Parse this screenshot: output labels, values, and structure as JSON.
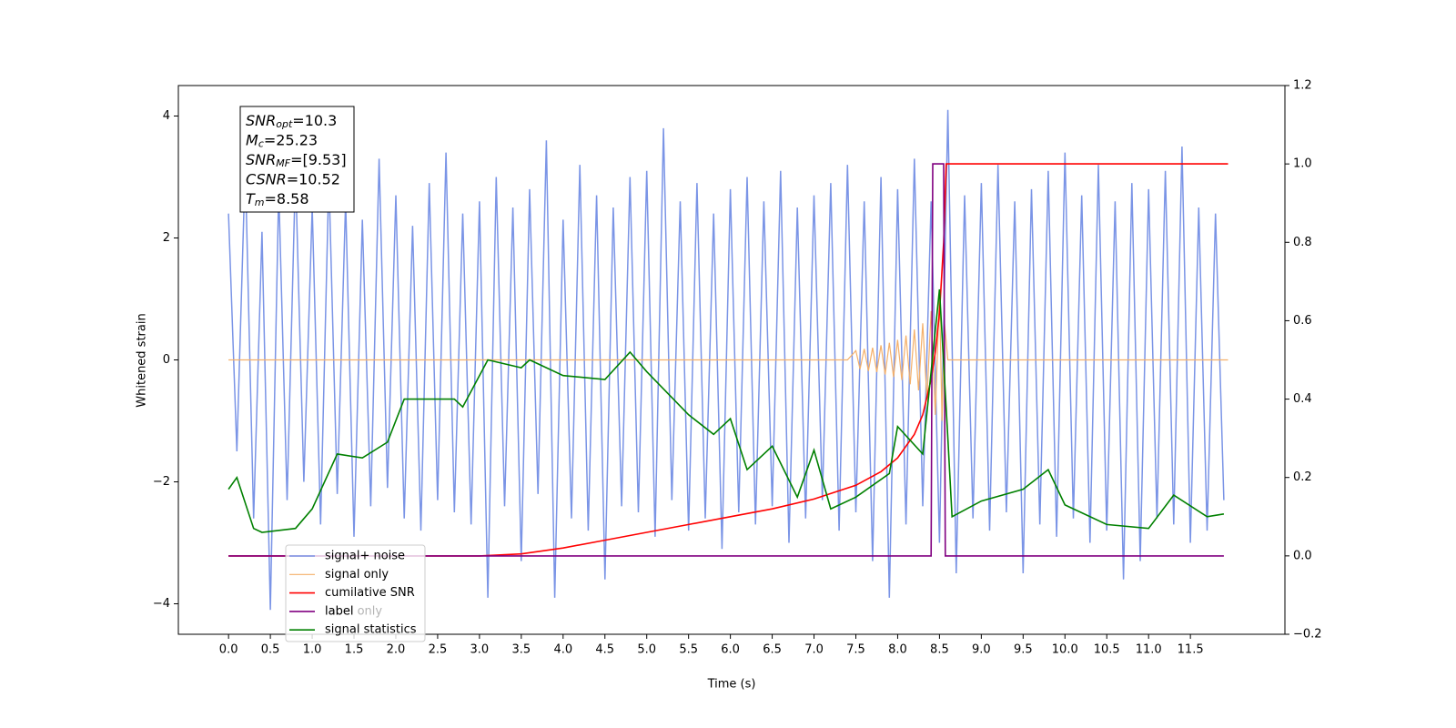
{
  "chart_data": {
    "type": "line",
    "xlabel": "Time (s)",
    "ylabel": "Whitened strain",
    "xlim": [
      -0.6,
      12.63
    ],
    "ylim": [
      -4.5,
      4.5
    ],
    "y2lim": [
      -0.2,
      1.2
    ],
    "xticks": [
      {
        "value": 0,
        "label": "0.0"
      },
      {
        "value": 0.5,
        "label": "0.5"
      },
      {
        "value": 1,
        "label": "1.0"
      },
      {
        "value": 1.5,
        "label": "1.5"
      },
      {
        "value": 2,
        "label": "2.0"
      },
      {
        "value": 2.5,
        "label": "2.5"
      },
      {
        "value": 3,
        "label": "3.0"
      },
      {
        "value": 3.5,
        "label": "3.5"
      },
      {
        "value": 4,
        "label": "4.0"
      },
      {
        "value": 4.5,
        "label": "4.5"
      },
      {
        "value": 5,
        "label": "5.0"
      },
      {
        "value": 5.5,
        "label": "5.5"
      },
      {
        "value": 6,
        "label": "6.0"
      },
      {
        "value": 6.5,
        "label": "6.5"
      },
      {
        "value": 7,
        "label": "7.0"
      },
      {
        "value": 7.5,
        "label": "7.5"
      },
      {
        "value": 8,
        "label": "8.0"
      },
      {
        "value": 8.5,
        "label": "8.5"
      },
      {
        "value": 9,
        "label": "9.0"
      },
      {
        "value": 9.5,
        "label": "9.5"
      },
      {
        "value": 10,
        "label": "10.0"
      },
      {
        "value": 10.5,
        "label": "10.5"
      },
      {
        "value": 11,
        "label": "11.0"
      },
      {
        "value": 11.5,
        "label": "11.5"
      }
    ],
    "yticks": [
      {
        "value": -4,
        "label": "−4"
      },
      {
        "value": -2,
        "label": "−2"
      },
      0,
      2,
      4
    ],
    "y2ticks": [
      {
        "value": -0.2,
        "label": "−0.2"
      },
      {
        "value": 0,
        "label": "0.0"
      },
      {
        "value": 0.2,
        "label": "0.2"
      },
      {
        "value": 0.4,
        "label": "0.4"
      },
      {
        "value": 0.6,
        "label": "0.6"
      },
      {
        "value": 0.8,
        "label": "0.8"
      },
      {
        "value": 1,
        "label": "1.0"
      },
      {
        "value": 1.2,
        "label": "1.2"
      }
    ],
    "annotation": [
      {
        "main": "SNR",
        "sub": "opt",
        "rest": "=10.3"
      },
      {
        "main": "M",
        "sub": "c",
        "rest": "=25.23"
      },
      {
        "main": "SNR",
        "sub": "MF",
        "rest": "=[9.53]"
      },
      {
        "main": "CSNR",
        "sub": "",
        "rest": "=10.52"
      },
      {
        "main": "T",
        "sub": "m",
        "rest": "=8.58"
      }
    ],
    "legend_hidden": "label only",
    "series": [
      {
        "name": "signal+ noise",
        "color": "#7a94e6",
        "width": 1.5,
        "x": [
          0,
          0.1,
          0.2,
          0.3,
          0.4,
          0.5,
          0.6,
          0.7,
          0.8,
          0.9,
          1,
          1.1,
          1.2,
          1.3,
          1.4,
          1.5,
          1.6,
          1.7,
          1.8,
          1.9,
          2,
          2.1,
          2.2,
          2.3,
          2.4,
          2.5,
          2.6,
          2.7,
          2.8,
          2.9,
          3,
          3.1,
          3.2,
          3.3,
          3.4,
          3.5,
          3.6,
          3.7,
          3.8,
          3.9,
          4,
          4.1,
          4.2,
          4.3,
          4.4,
          4.5,
          4.6,
          4.7,
          4.8,
          4.9,
          5,
          5.1,
          5.2,
          5.3,
          5.4,
          5.5,
          5.6,
          5.7,
          5.8,
          5.9,
          6,
          6.1,
          6.2,
          6.3,
          6.4,
          6.5,
          6.6,
          6.7,
          6.8,
          6.9,
          7,
          7.1,
          7.2,
          7.3,
          7.4,
          7.5,
          7.6,
          7.7,
          7.8,
          7.9,
          8,
          8.1,
          8.2,
          8.3,
          8.4,
          8.5,
          8.6,
          8.7,
          8.8,
          8.9,
          9,
          9.1,
          9.2,
          9.3,
          9.4,
          9.5,
          9.6,
          9.7,
          9.8,
          9.9,
          10,
          10.1,
          10.2,
          10.3,
          10.4,
          10.5,
          10.6,
          10.7,
          10.8,
          10.9,
          11,
          11.1,
          11.2,
          11.3,
          11.4,
          11.5,
          11.6,
          11.7,
          11.8,
          11.9
        ],
        "values": [
          2.4,
          -1.5,
          3.2,
          -2.6,
          2.1,
          -4.1,
          2.8,
          -2.3,
          3.1,
          -2.0,
          2.5,
          -2.7,
          3.0,
          -2.2,
          2.6,
          -2.9,
          2.3,
          -2.4,
          3.3,
          -2.1,
          2.7,
          -2.6,
          2.2,
          -2.8,
          2.9,
          -2.3,
          3.4,
          -2.5,
          2.4,
          -2.7,
          2.6,
          -3.9,
          3.0,
          -2.4,
          2.5,
          -3.3,
          2.8,
          -2.2,
          3.6,
          -3.9,
          2.3,
          -2.6,
          3.2,
          -2.8,
          2.7,
          -3.6,
          2.5,
          -2.4,
          3.0,
          -2.5,
          3.1,
          -2.9,
          3.8,
          -2.3,
          2.6,
          -2.8,
          2.9,
          -2.6,
          2.4,
          -3.1,
          2.8,
          -2.5,
          3.0,
          -2.7,
          2.6,
          -2.4,
          3.1,
          -3.0,
          2.5,
          -2.6,
          2.7,
          -2.3,
          2.9,
          -2.8,
          3.2,
          -2.5,
          2.6,
          -3.3,
          3.0,
          -3.9,
          2.8,
          -2.7,
          3.3,
          -2.4,
          2.6,
          -3.0,
          4.1,
          -3.5,
          2.7,
          -2.6,
          2.9,
          -2.8,
          3.2,
          -2.5,
          2.6,
          -3.5,
          2.8,
          -2.7,
          3.1,
          -2.9,
          3.4,
          -2.6,
          2.7,
          -3.0,
          3.2,
          -2.8,
          2.6,
          -3.6,
          2.9,
          -3.3,
          2.8,
          -2.6,
          3.1,
          -2.7,
          3.5,
          -3.0,
          2.5,
          -2.8,
          2.4,
          -2.3
        ]
      },
      {
        "name": "signal only",
        "color": "#f4b06a",
        "width": 1.2,
        "x": [
          0,
          7.4,
          7.5,
          7.55,
          7.6,
          7.65,
          7.7,
          7.75,
          7.8,
          7.85,
          7.9,
          7.95,
          8,
          8.05,
          8.1,
          8.15,
          8.2,
          8.25,
          8.3,
          8.35,
          8.4,
          8.45,
          8.5,
          8.53,
          8.56,
          8.6,
          11.95
        ],
        "values": [
          0,
          0,
          0.15,
          -0.15,
          0.18,
          -0.18,
          0.2,
          -0.2,
          0.24,
          -0.24,
          0.28,
          -0.28,
          0.33,
          -0.33,
          0.4,
          -0.4,
          0.5,
          -0.5,
          0.6,
          -0.65,
          0.8,
          -0.9,
          1.1,
          -1.0,
          0.6,
          0,
          0
        ]
      },
      {
        "name": "cumilative SNR",
        "color": "#ff0000",
        "width": 1.6,
        "axis": "y2",
        "x": [
          0,
          3,
          3.5,
          4,
          4.5,
          5,
          5.5,
          6,
          6.5,
          7,
          7.5,
          7.8,
          8,
          8.2,
          8.3,
          8.4,
          8.45,
          8.5,
          8.55,
          8.58,
          11.95
        ],
        "values": [
          0,
          0,
          0.005,
          0.02,
          0.04,
          0.06,
          0.08,
          0.1,
          0.12,
          0.145,
          0.18,
          0.215,
          0.25,
          0.31,
          0.36,
          0.45,
          0.52,
          0.62,
          0.8,
          1,
          1
        ]
      },
      {
        "name": "label",
        "color": "#800080",
        "width": 1.6,
        "axis": "y2",
        "x": [
          0,
          8.4,
          8.42,
          8.55,
          8.57,
          11.9
        ],
        "values": [
          0,
          0,
          1,
          1,
          0,
          0
        ]
      },
      {
        "name": "signal statistics",
        "color": "#008000",
        "width": 1.6,
        "axis": "y2",
        "x": [
          0,
          0.1,
          0.3,
          0.4,
          0.8,
          1,
          1.3,
          1.6,
          1.9,
          2.1,
          2.4,
          2.7,
          2.8,
          3,
          3.1,
          3.5,
          3.6,
          4,
          4.5,
          4.8,
          5,
          5.5,
          5.8,
          6,
          6.2,
          6.5,
          6.8,
          7,
          7.2,
          7.5,
          7.9,
          8,
          8.3,
          8.5,
          8.6,
          8.65,
          9,
          9.5,
          9.8,
          10,
          10.5,
          11,
          11.3,
          11.7,
          11.9
        ],
        "values": [
          0.17,
          0.2,
          0.07,
          0.06,
          0.07,
          0.12,
          0.26,
          0.25,
          0.29,
          0.4,
          0.4,
          0.4,
          0.38,
          0.46,
          0.5,
          0.48,
          0.5,
          0.46,
          0.45,
          0.52,
          0.47,
          0.36,
          0.31,
          0.35,
          0.22,
          0.28,
          0.15,
          0.27,
          0.12,
          0.15,
          0.21,
          0.33,
          0.26,
          0.68,
          0.3,
          0.1,
          0.14,
          0.17,
          0.22,
          0.13,
          0.08,
          0.07,
          0.155,
          0.1,
          0.107
        ]
      }
    ]
  }
}
